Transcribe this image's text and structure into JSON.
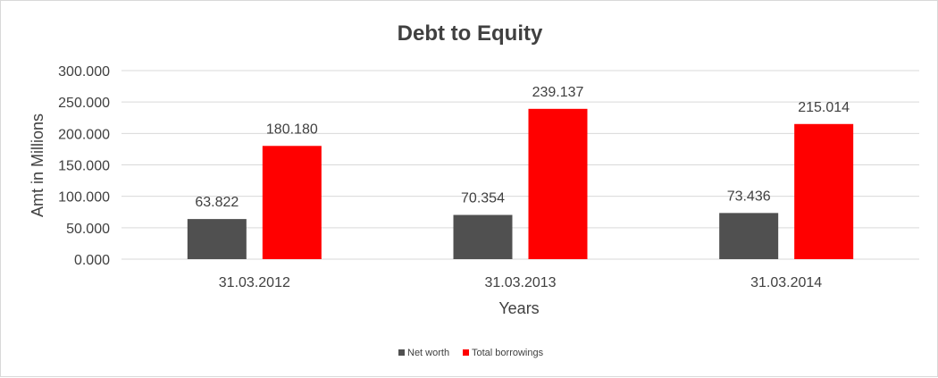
{
  "chart_data": {
    "type": "bar",
    "title": "Debt to Equity",
    "xlabel": "Years",
    "ylabel": "Amt in Millions",
    "categories": [
      "31.03.2012",
      "31.03.2013",
      "31.03.2014"
    ],
    "series": [
      {
        "name": "Net worth",
        "values": [
          63.822,
          70.354,
          73.436
        ],
        "labels": [
          "63.822",
          "70.354",
          "73.436"
        ],
        "color": "#505050"
      },
      {
        "name": "Total borrowings",
        "values": [
          180.18,
          239.137,
          215.014
        ],
        "labels": [
          "180.180",
          "239.137",
          "215.014"
        ],
        "color": "#ff0000"
      }
    ],
    "ylim": [
      0,
      300
    ],
    "yticks": [
      0,
      50,
      100,
      150,
      200,
      250,
      300
    ],
    "ytick_labels": [
      "0.000",
      "50.000",
      "100.000",
      "150.000",
      "200.000",
      "250.000",
      "300.000"
    ],
    "grid": true,
    "legend_position": "bottom"
  }
}
